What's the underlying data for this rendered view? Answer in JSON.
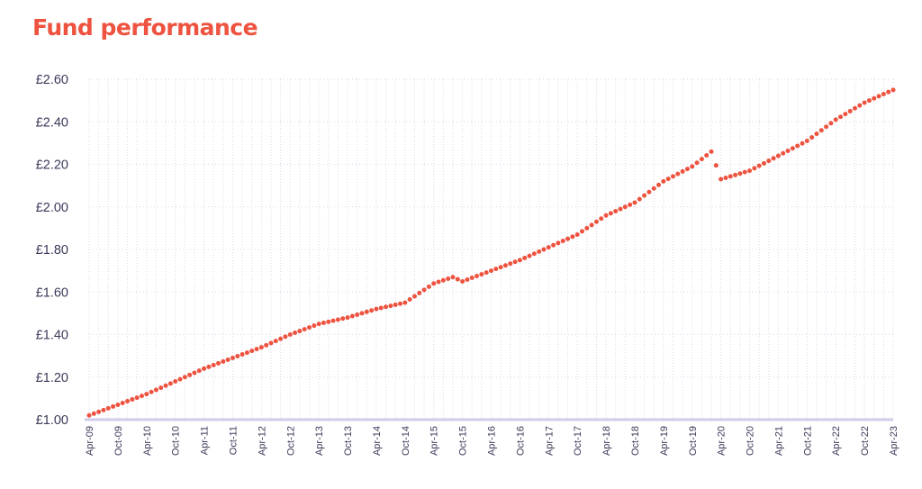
{
  "title": "Fund performance",
  "colors": {
    "accent": "#ee5340",
    "grid": "#d9d8ec",
    "axis": "#cfcdea",
    "text": "#3a3a5a"
  },
  "chart_data": {
    "type": "line",
    "title": "Fund performance",
    "xlabel": "",
    "ylabel": "",
    "y_tick_labels": [
      "£1.00",
      "£1.20",
      "£1.40",
      "£1.60",
      "£1.80",
      "£2.00",
      "£2.20",
      "£2.40",
      "£2.60"
    ],
    "y_ticks": [
      1.0,
      1.2,
      1.4,
      1.6,
      1.8,
      2.0,
      2.2,
      2.4,
      2.6
    ],
    "ylim": [
      1.0,
      2.6
    ],
    "x_tick_labels": [
      "Apr-09",
      "Oct-09",
      "Apr-10",
      "Oct-10",
      "Apr-11",
      "Oct-11",
      "Apr-12",
      "Oct-12",
      "Apr-13",
      "Oct-13",
      "Apr-14",
      "Oct-14",
      "Apr-15",
      "Oct-15",
      "Apr-16",
      "Oct-16",
      "Apr-17",
      "Oct-17",
      "Apr-18",
      "Oct-18",
      "Apr-19",
      "Oct-19",
      "Apr-20",
      "Oct-20",
      "Apr-21",
      "Oct-21",
      "Apr-22",
      "Oct-22",
      "Apr-23"
    ],
    "grid": "vertical dashed and horizontal dotted",
    "line_style": "dotted",
    "series": [
      {
        "color": "#ee5340",
        "x": [
          "Apr-09",
          "Oct-09",
          "Apr-10",
          "Oct-10",
          "Apr-11",
          "Oct-11",
          "Apr-12",
          "Oct-12",
          "Apr-13",
          "Oct-13",
          "Apr-14",
          "Oct-14",
          "Apr-15",
          "Aug-15",
          "Oct-15",
          "Apr-16",
          "Oct-16",
          "Apr-17",
          "Oct-17",
          "Apr-18",
          "Oct-18",
          "Apr-19",
          "Oct-19",
          "Feb-20",
          "Apr-20",
          "Oct-20",
          "Apr-21",
          "Oct-21",
          "Apr-22",
          "Oct-22",
          "Apr-23"
        ],
        "values": [
          1.02,
          1.07,
          1.12,
          1.18,
          1.24,
          1.29,
          1.34,
          1.4,
          1.45,
          1.48,
          1.52,
          1.55,
          1.64,
          1.67,
          1.65,
          1.7,
          1.75,
          1.81,
          1.87,
          1.96,
          2.02,
          2.12,
          2.19,
          2.26,
          2.13,
          2.17,
          2.24,
          2.31,
          2.41,
          2.49,
          2.55
        ]
      }
    ]
  }
}
